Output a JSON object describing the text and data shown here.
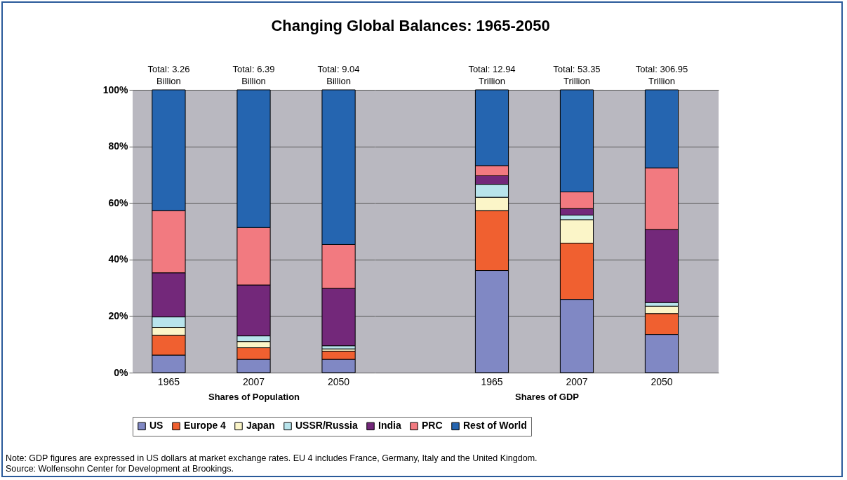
{
  "chart_data": [
    {
      "type": "bar",
      "title": "Changing Global Balances: 1965-2050",
      "xlabel": "Shares of Population",
      "categories": [
        "1965",
        "2007",
        "2050"
      ],
      "stacked": true,
      "ylim": [
        0,
        100
      ],
      "yticks": [
        {
          "value": 0,
          "label": "0%"
        },
        {
          "value": 20,
          "label": "20%"
        },
        {
          "value": 40,
          "label": "40%"
        },
        {
          "value": 60,
          "label": "60%"
        },
        {
          "value": 80,
          "label": "80%"
        },
        {
          "value": 100,
          "label": "100%"
        }
      ],
      "grid": "y",
      "legend": "bottom",
      "annotations": [
        {
          "text": "Total: 3.26 Billion",
          "x": "1965",
          "y": 100
        },
        {
          "text": "Total: 6.39 Billion",
          "x": "2007",
          "y": 100
        },
        {
          "text": "Total: 9.04 Billion",
          "x": "2050",
          "y": 100
        }
      ],
      "series": [
        {
          "name": "US",
          "color": "#8088c4",
          "values": [
            6.2,
            4.7,
            4.7
          ]
        },
        {
          "name": "Europe 4",
          "color": "#f06030",
          "values": [
            7.0,
            4.1,
            2.9
          ]
        },
        {
          "name": "Japan",
          "color": "#fbf5c8",
          "values": [
            2.8,
            2.2,
            0.8
          ]
        },
        {
          "name": "USSR/Russia",
          "color": "#b8e4ec",
          "values": [
            3.7,
            2.0,
            1.1
          ]
        },
        {
          "name": "India",
          "color": "#73287a",
          "values": [
            15.6,
            18.0,
            20.3
          ]
        },
        {
          "name": "PRC",
          "color": "#f27a80",
          "values": [
            22.0,
            20.3,
            15.5
          ]
        },
        {
          "name": "Rest of World",
          "color": "#2565b0",
          "values": [
            42.7,
            48.7,
            54.7
          ]
        }
      ]
    },
    {
      "type": "bar",
      "xlabel": "Shares of GDP",
      "categories": [
        "1965",
        "2007",
        "2050"
      ],
      "stacked": true,
      "ylim": [
        0,
        100
      ],
      "yticks": [
        {
          "value": 0,
          "label": null
        },
        {
          "value": 20,
          "label": null
        },
        {
          "value": 40,
          "label": null
        },
        {
          "value": 60,
          "label": null
        },
        {
          "value": 80,
          "label": null
        },
        {
          "value": 100,
          "label": null
        }
      ],
      "grid": "y",
      "legend": "bottom",
      "tick_labels": "x",
      "annotations": [
        {
          "text": "Total: 12.94 Trillion",
          "x": "1965",
          "y": 100
        },
        {
          "text": "Total: 53.35 Trillion",
          "x": "2007",
          "y": 100
        },
        {
          "text": "Total: 306.95 Trillion",
          "x": "2050",
          "y": 100
        },
        "Note: GDP figures are expressed in US dollars at market exchange rates. EU 4 includes France, Germany, Italy and the United Kingdom.",
        "Source: Wolfensohn Center for Development at Brookings."
      ],
      "series": [
        {
          "name": "US",
          "color": "#8088c4",
          "values": [
            36.1,
            25.9,
            13.5
          ]
        },
        {
          "name": "Europe 4",
          "color": "#f06030",
          "values": [
            21.2,
            19.9,
            7.4
          ]
        },
        {
          "name": "Japan",
          "color": "#fbf5c8",
          "values": [
            4.7,
            8.3,
            2.6
          ]
        },
        {
          "name": "USSR/Russia",
          "color": "#b8e4ec",
          "values": [
            4.6,
            1.6,
            1.3
          ]
        },
        {
          "name": "India",
          "color": "#73287a",
          "values": [
            3.0,
            2.3,
            25.8
          ]
        },
        {
          "name": "PRC",
          "color": "#f27a80",
          "values": [
            3.6,
            5.9,
            21.8
          ]
        },
        {
          "name": "Rest of World",
          "color": "#2565b0",
          "values": [
            26.8,
            36.1,
            27.6
          ]
        }
      ]
    }
  ]
}
